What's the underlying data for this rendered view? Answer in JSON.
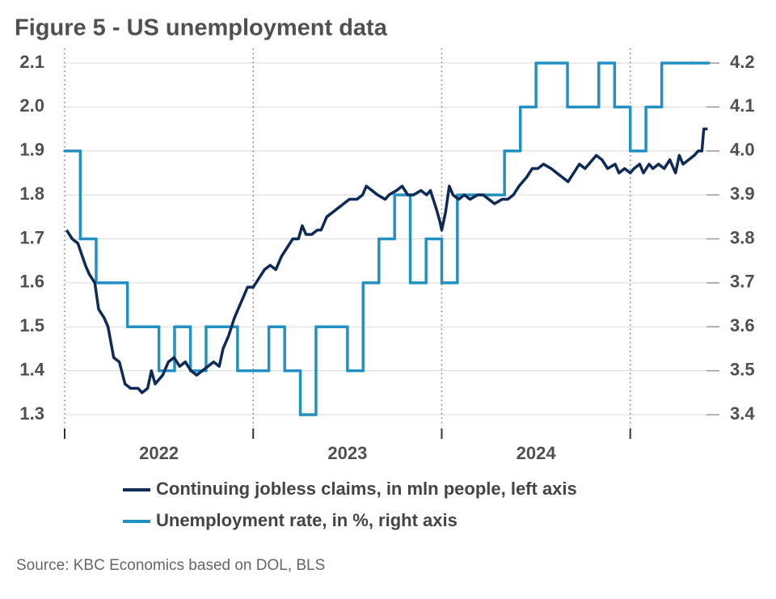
{
  "chart_data": {
    "type": "line",
    "title": "Figure 5 - US unemployment data",
    "source": "Source: KBC Economics based on DOL, BLS",
    "xlim": [
      2022,
      2025.43
    ],
    "xticks": [
      2022,
      2023,
      2024,
      2025
    ],
    "ylim": [
      1.3,
      2.1
    ],
    "yticks": [
      1.3,
      1.4,
      1.5,
      1.6,
      1.7,
      1.8,
      1.9,
      {
        "value": 2,
        "label": "2.0"
      },
      2.1
    ],
    "y2lim": [
      3.4,
      4.2
    ],
    "y2ticks": [
      3.4,
      3.5,
      3.6,
      3.7,
      3.8,
      3.9,
      {
        "value": 4,
        "label": "4.0"
      },
      4.1,
      4.2
    ],
    "grid": true,
    "series": [
      {
        "name": "Continuing jobless claims, in mln people, left axis",
        "color": "#0e2a56",
        "axis": "y",
        "step": false,
        "x": [
          2022.01,
          2022.04,
          2022.07,
          2022.11,
          2022.13,
          2022.16,
          2022.18,
          2022.21,
          2022.23,
          2022.26,
          2022.29,
          2022.32,
          2022.35,
          2022.39,
          2022.41,
          2022.44,
          2022.46,
          2022.48,
          2022.52,
          2022.55,
          2022.58,
          2022.61,
          2022.64,
          2022.67,
          2022.7,
          2022.73,
          2022.76,
          2022.79,
          2022.82,
          2022.84,
          2022.87,
          2022.9,
          2022.93,
          2022.97,
          2023.0,
          2023.03,
          2023.06,
          2023.09,
          2023.12,
          2023.15,
          2023.18,
          2023.21,
          2023.24,
          2023.26,
          2023.28,
          2023.31,
          2023.34,
          2023.36,
          2023.39,
          2023.42,
          2023.45,
          2023.48,
          2023.51,
          2023.55,
          2023.58,
          2023.6,
          2023.63,
          2023.66,
          2023.7,
          2023.72,
          2023.76,
          2023.79,
          2023.82,
          2023.85,
          2023.89,
          2023.92,
          2023.94,
          2023.97,
          2023.99,
          2024.0,
          2024.02,
          2024.04,
          2024.06,
          2024.09,
          2024.12,
          2024.15,
          2024.19,
          2024.22,
          2024.25,
          2024.28,
          2024.32,
          2024.35,
          2024.38,
          2024.41,
          2024.45,
          2024.48,
          2024.51,
          2024.54,
          2024.58,
          2024.61,
          2024.64,
          2024.67,
          2024.7,
          2024.73,
          2024.76,
          2024.8,
          2024.82,
          2024.85,
          2024.88,
          2024.92,
          2024.94,
          2024.97,
          2025.0,
          2025.02,
          2025.05,
          2025.07,
          2025.1,
          2025.12,
          2025.15,
          2025.18,
          2025.21,
          2025.24,
          2025.26,
          2025.28,
          2025.31,
          2025.34,
          2025.36,
          2025.38,
          2025.39,
          2025.41
        ],
        "values": [
          1.72,
          1.7,
          1.69,
          1.64,
          1.62,
          1.6,
          1.54,
          1.52,
          1.5,
          1.43,
          1.42,
          1.37,
          1.36,
          1.36,
          1.35,
          1.36,
          1.4,
          1.37,
          1.39,
          1.42,
          1.43,
          1.41,
          1.42,
          1.4,
          1.39,
          1.4,
          1.41,
          1.42,
          1.41,
          1.45,
          1.48,
          1.52,
          1.55,
          1.59,
          1.59,
          1.61,
          1.63,
          1.64,
          1.63,
          1.66,
          1.68,
          1.7,
          1.7,
          1.73,
          1.71,
          1.71,
          1.72,
          1.72,
          1.75,
          1.76,
          1.77,
          1.78,
          1.79,
          1.79,
          1.8,
          1.82,
          1.81,
          1.8,
          1.79,
          1.8,
          1.81,
          1.82,
          1.8,
          1.8,
          1.81,
          1.8,
          1.81,
          1.77,
          1.74,
          1.72,
          1.76,
          1.82,
          1.8,
          1.79,
          1.8,
          1.79,
          1.8,
          1.8,
          1.79,
          1.78,
          1.79,
          1.79,
          1.8,
          1.82,
          1.84,
          1.86,
          1.86,
          1.87,
          1.86,
          1.85,
          1.84,
          1.83,
          1.85,
          1.87,
          1.86,
          1.88,
          1.89,
          1.88,
          1.86,
          1.87,
          1.85,
          1.86,
          1.85,
          1.86,
          1.87,
          1.85,
          1.87,
          1.86,
          1.87,
          1.86,
          1.88,
          1.85,
          1.89,
          1.87,
          1.88,
          1.89,
          1.9,
          1.9,
          1.95,
          1.95
        ]
      },
      {
        "name": "Unemployment rate, in %, right axis",
        "color": "#2390c3",
        "axis": "y2",
        "step": true,
        "x": [
          2022,
          2022.083,
          2022.167,
          2022.25,
          2022.333,
          2022.417,
          2022.5,
          2022.583,
          2022.667,
          2022.75,
          2022.833,
          2022.917,
          2023,
          2023.083,
          2023.167,
          2023.25,
          2023.333,
          2023.417,
          2023.5,
          2023.583,
          2023.667,
          2023.75,
          2023.833,
          2023.917,
          2024,
          2024.083,
          2024.167,
          2024.25,
          2024.333,
          2024.417,
          2024.5,
          2024.583,
          2024.667,
          2024.75,
          2024.833,
          2024.917,
          2025,
          2025.083,
          2025.167,
          2025.25,
          2025.333
        ],
        "values": [
          4.0,
          3.8,
          3.7,
          3.7,
          3.6,
          3.6,
          3.5,
          3.6,
          3.5,
          3.6,
          3.6,
          3.5,
          3.5,
          3.6,
          3.5,
          3.4,
          3.6,
          3.6,
          3.5,
          3.7,
          3.8,
          3.9,
          3.7,
          3.8,
          3.7,
          3.9,
          3.9,
          3.9,
          4.0,
          4.1,
          4.2,
          4.2,
          4.1,
          4.1,
          4.2,
          4.1,
          4.0,
          4.1,
          4.2,
          4.2,
          4.2
        ]
      }
    ]
  }
}
